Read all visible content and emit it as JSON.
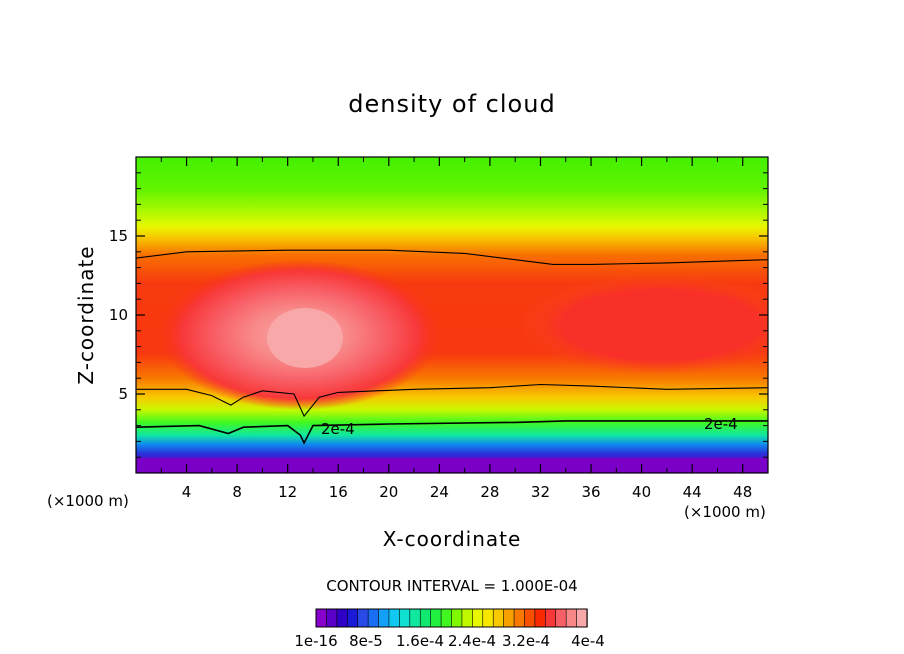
{
  "chart_data": {
    "type": "heatmap",
    "title": "density of cloud",
    "xlabel": "X-coordinate",
    "ylabel": "Z-coordinate",
    "x_unit": "(×1000 m)",
    "xlim": [
      0,
      50
    ],
    "ylim": [
      0,
      20
    ],
    "x_ticks": [
      4,
      8,
      12,
      16,
      20,
      24,
      28,
      32,
      36,
      40,
      44,
      48
    ],
    "y_ticks": [
      5,
      10,
      15
    ],
    "contour_interval_text": "CONTOUR INTERVAL = 1.000E-04",
    "contour_label": "2e-4",
    "contour_lines": [
      {
        "name": "upper",
        "points": [
          [
            0,
            13.6
          ],
          [
            4,
            14.0
          ],
          [
            12,
            14.1
          ],
          [
            20,
            14.1
          ],
          [
            26,
            13.9
          ],
          [
            30,
            13.5
          ],
          [
            33,
            13.2
          ],
          [
            36,
            13.2
          ],
          [
            42,
            13.3
          ],
          [
            50,
            13.5
          ]
        ]
      },
      {
        "name": "middle",
        "points": [
          [
            0,
            5.3
          ],
          [
            4,
            5.3
          ],
          [
            6,
            4.9
          ],
          [
            7.5,
            4.3
          ],
          [
            8.5,
            4.8
          ],
          [
            10,
            5.2
          ],
          [
            12.5,
            5.0
          ],
          [
            13.3,
            3.6
          ],
          [
            14.5,
            4.8
          ],
          [
            16,
            5.1
          ],
          [
            22,
            5.3
          ],
          [
            28,
            5.4
          ],
          [
            32,
            5.6
          ],
          [
            36,
            5.5
          ],
          [
            42,
            5.3
          ],
          [
            50,
            5.4
          ]
        ]
      },
      {
        "name": "lower",
        "points": [
          [
            0,
            2.9
          ],
          [
            5,
            3.0
          ],
          [
            7.3,
            2.5
          ],
          [
            8.5,
            2.9
          ],
          [
            12,
            3.0
          ],
          [
            13,
            2.4
          ],
          [
            13.3,
            1.9
          ],
          [
            14,
            3.0
          ],
          [
            20,
            3.1
          ],
          [
            30,
            3.2
          ],
          [
            34,
            3.3
          ],
          [
            40,
            3.3
          ],
          [
            50,
            3.3
          ]
        ]
      }
    ],
    "colorbar": {
      "tick_labels": [
        "1e-16",
        "8e-5",
        "1.6e-4",
        "2.4e-4",
        "3.2e-4",
        "4e-4"
      ],
      "colors": [
        "#8800cc",
        "#5a00c8",
        "#3000c8",
        "#1a1ad8",
        "#2a4ae8",
        "#1a6ef4",
        "#12a0f8",
        "#10c8f0",
        "#10e0d0",
        "#10e8a0",
        "#10e870",
        "#20f040",
        "#40f820",
        "#80f800",
        "#c0f800",
        "#e8f800",
        "#f8e800",
        "#f8c800",
        "#f8a000",
        "#f87800",
        "#f85000",
        "#f82800",
        "#f83838",
        "#f86068",
        "#f88888",
        "#f8a8a8"
      ]
    }
  }
}
